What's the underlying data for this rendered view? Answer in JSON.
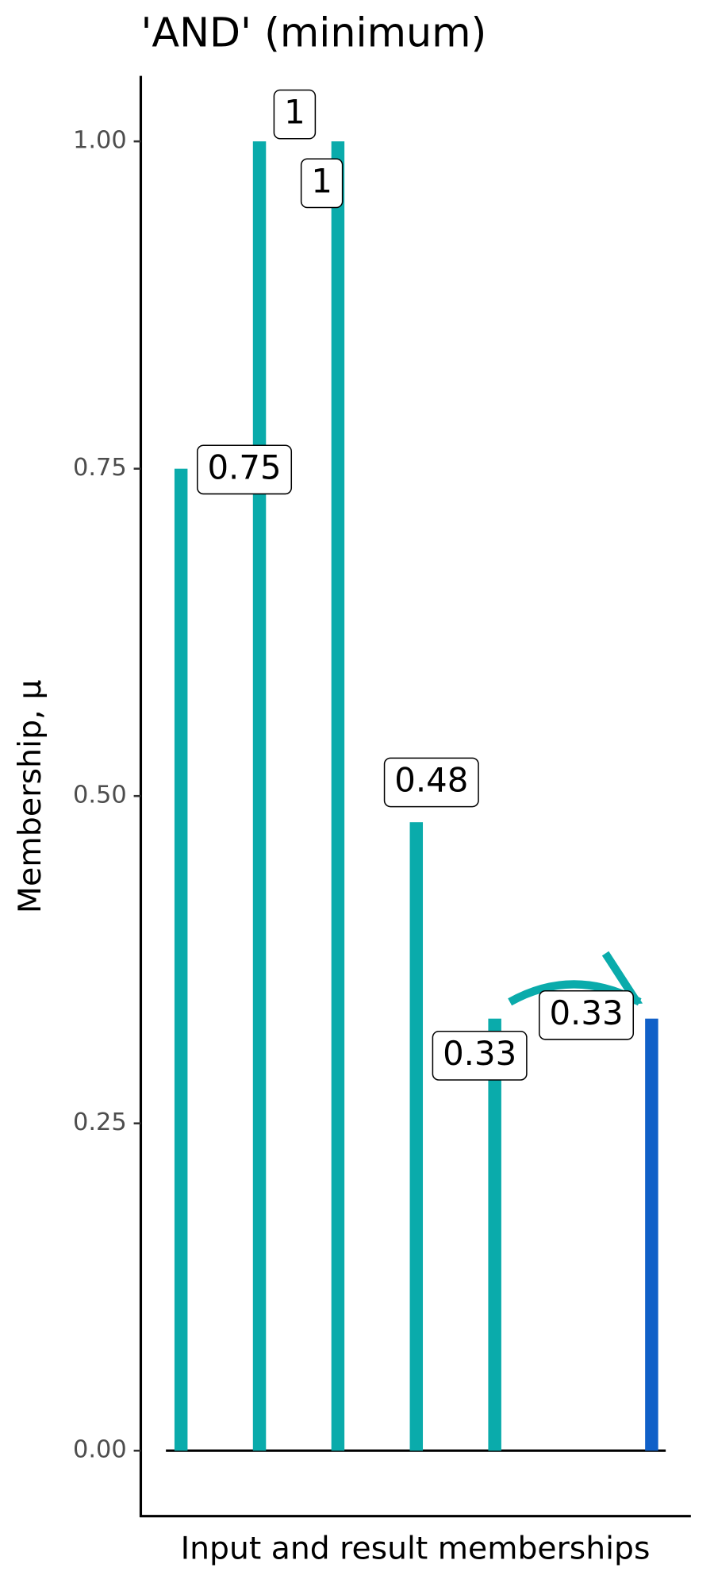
{
  "chart_data": {
    "type": "bar",
    "title": "'AND' (minimum)",
    "x_label": "Input and result memberships",
    "y_label": "Membership, μ",
    "categories": [
      null,
      null,
      null,
      null,
      null,
      null,
      null
    ],
    "values": [
      0.75,
      1,
      1,
      0.48,
      0.33,
      null,
      0.33
    ],
    "colors": [
      "#0aabab",
      "#0aabab",
      "#0aabab",
      "#0aabab",
      "#0aabab",
      null,
      "#1060c8"
    ],
    "ylim": [
      -0.05,
      1.05
    ],
    "yticks": [
      {
        "value": 0,
        "label": "0.00"
      },
      {
        "value": 0.25,
        "label": "0.25"
      },
      {
        "value": 0.5,
        "label": "0.50"
      },
      {
        "value": 0.75,
        "label": "0.75"
      },
      {
        "value": 1,
        "label": "1.00"
      }
    ]
  }
}
